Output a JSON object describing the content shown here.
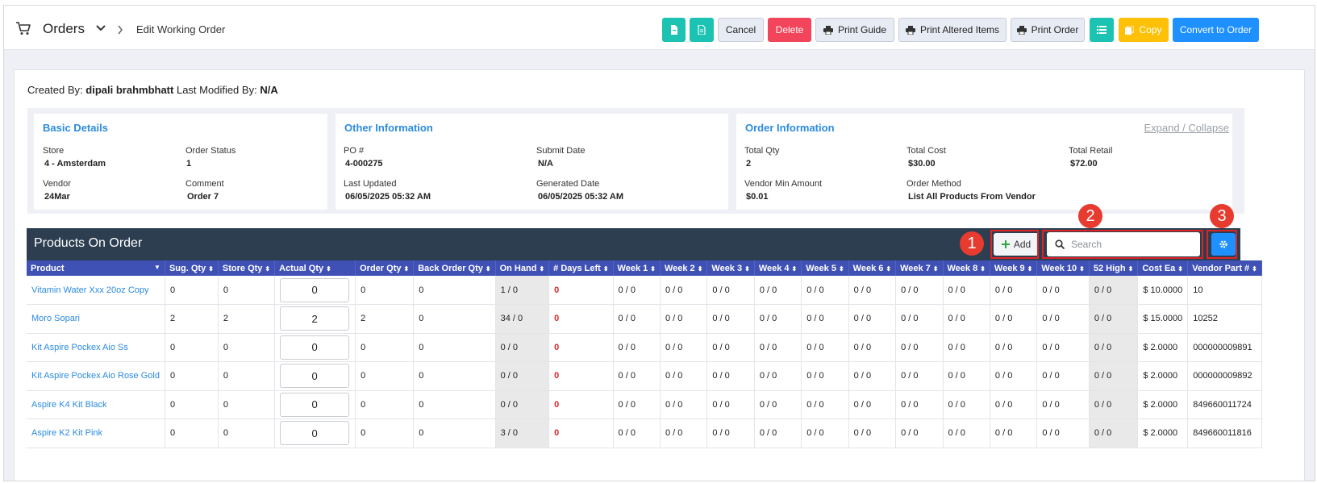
{
  "header": {
    "section_label": "Orders",
    "page_label": "Edit Working Order",
    "buttons": {
      "cancel": "Cancel",
      "delete": "Delete",
      "print_guide": "Print Guide",
      "print_altered": "Print Altered Items",
      "print_order": "Print Order",
      "copy": "Copy",
      "convert": "Convert to Order"
    }
  },
  "meta": {
    "created_by_label": "Created By:",
    "created_by": "dipali brahmbhatt",
    "modified_by_label": "Last Modified By:",
    "modified_by": "N/A"
  },
  "basic": {
    "title": "Basic Details",
    "store_label": "Store",
    "store": "4 - Amsterdam",
    "status_label": "Order Status",
    "status": "1",
    "vendor_label": "Vendor",
    "vendor": "24Mar",
    "comment_label": "Comment",
    "comment": "Order 7"
  },
  "other": {
    "title": "Other Information",
    "po_label": "PO #",
    "po": "4-000275",
    "submit_label": "Submit Date",
    "submit": "N/A",
    "updated_label": "Last Updated",
    "updated": "06/05/2025 05:32 AM",
    "generated_label": "Generated Date",
    "generated": "06/05/2025 05:32 AM"
  },
  "orderinfo": {
    "title": "Order Information",
    "expand": "Expand / Collapse",
    "qty_label": "Total Qty",
    "qty": "2",
    "cost_label": "Total Cost",
    "cost": "$30.00",
    "retail_label": "Total Retail",
    "retail": "$72.00",
    "min_label": "Vendor Min Amount",
    "min": "$0.01",
    "method_label": "Order Method",
    "method": "List All Products From Vendor"
  },
  "products": {
    "title": "Products On Order",
    "add_label": "Add",
    "search_placeholder": "Search",
    "annotations": [
      "1",
      "2",
      "3"
    ],
    "columns": [
      "Product",
      "Sug. Qty",
      "Store Qty",
      "Actual Qty",
      "Order Qty",
      "Back Order Qty",
      "On Hand",
      "# Days Left",
      "Week 1",
      "Week 2",
      "Week 3",
      "Week 4",
      "Week 5",
      "Week 6",
      "Week 7",
      "Week 8",
      "Week 9",
      "Week 10",
      "52 High",
      "Cost Ea",
      "Vendor Part #"
    ],
    "rows": [
      [
        "Vitamin Water Xxx 20oz Copy",
        "0",
        "0",
        "0",
        "0",
        "0",
        "1 / 0",
        "0",
        "0 / 0",
        "0 / 0",
        "0 / 0",
        "0 / 0",
        "0 / 0",
        "0 / 0",
        "0 / 0",
        "0 / 0",
        "0 / 0",
        "0 / 0",
        "0 / 0",
        "$ 10.0000",
        "10"
      ],
      [
        "Moro Sopari",
        "2",
        "2",
        "2",
        "2",
        "0",
        "34 / 0",
        "0",
        "0 / 0",
        "0 / 0",
        "0 / 0",
        "0 / 0",
        "0 / 0",
        "0 / 0",
        "0 / 0",
        "0 / 0",
        "0 / 0",
        "0 / 0",
        "0 / 0",
        "$ 15.0000",
        "10252"
      ],
      [
        "Kit Aspire Pockex Aio Ss",
        "0",
        "0",
        "0",
        "0",
        "0",
        "0 / 0",
        "0",
        "0 / 0",
        "0 / 0",
        "0 / 0",
        "0 / 0",
        "0 / 0",
        "0 / 0",
        "0 / 0",
        "0 / 0",
        "0 / 0",
        "0 / 0",
        "0 / 0",
        "$ 2.0000",
        "000000009891"
      ],
      [
        "Kit Aspire Pockex Aio Rose Gold",
        "0",
        "0",
        "0",
        "0",
        "0",
        "0 / 0",
        "0",
        "0 / 0",
        "0 / 0",
        "0 / 0",
        "0 / 0",
        "0 / 0",
        "0 / 0",
        "0 / 0",
        "0 / 0",
        "0 / 0",
        "0 / 0",
        "0 / 0",
        "$ 2.0000",
        "000000009892"
      ],
      [
        "Aspire K4 Kit Black",
        "0",
        "0",
        "0",
        "0",
        "0",
        "0 / 0",
        "0",
        "0 / 0",
        "0 / 0",
        "0 / 0",
        "0 / 0",
        "0 / 0",
        "0 / 0",
        "0 / 0",
        "0 / 0",
        "0 / 0",
        "0 / 0",
        "0 / 0",
        "$ 2.0000",
        "849660011724"
      ],
      [
        "Aspire K2 Kit Pink",
        "0",
        "0",
        "0",
        "0",
        "0",
        "3 / 0",
        "0",
        "0 / 0",
        "0 / 0",
        "0 / 0",
        "0 / 0",
        "0 / 0",
        "0 / 0",
        "0 / 0",
        "0 / 0",
        "0 / 0",
        "0 / 0",
        "0 / 0",
        "$ 2.0000",
        "849660011816"
      ]
    ]
  },
  "colors": {
    "teal": "#1cc3b2",
    "red": "#f2445a",
    "blue": "#1e90ff",
    "navy": "#2c3e50",
    "header_blue": "#3f51b5",
    "link": "#2b8be0"
  }
}
